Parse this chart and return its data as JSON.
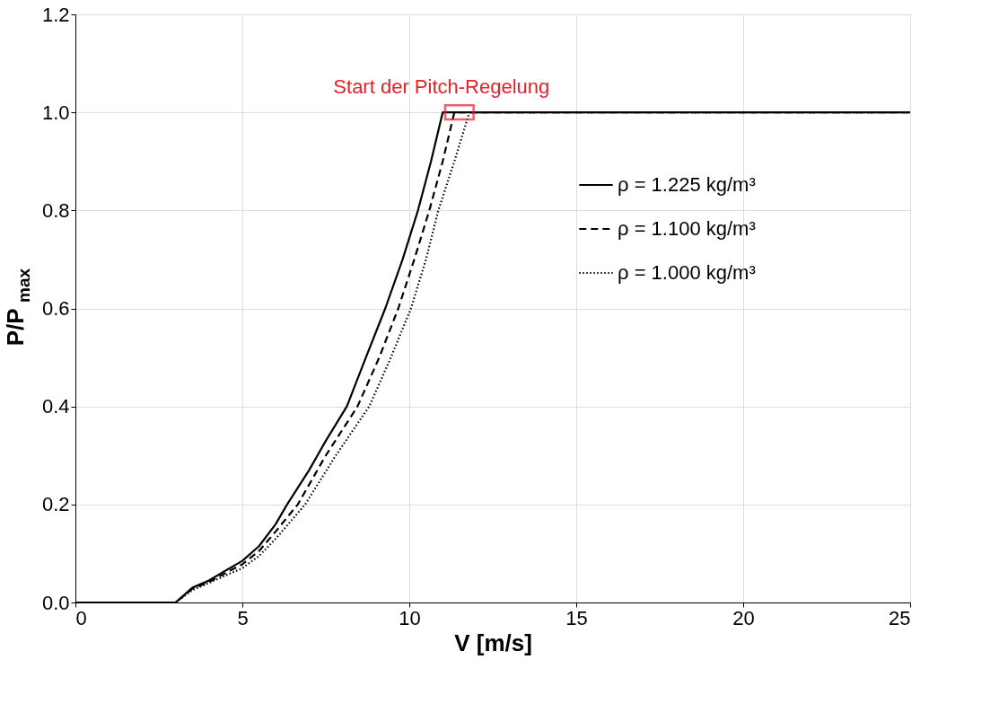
{
  "chart_data": {
    "type": "line",
    "xlabel": "V [m/s]",
    "ylabel": "P/P$_{max}$",
    "xlim": [
      0,
      25
    ],
    "xticks": [
      0,
      5,
      10,
      15,
      20,
      25
    ],
    "ylim": [
      0,
      1.2
    ],
    "yticks": [
      {
        "value": 0,
        "label": "0.0"
      },
      {
        "value": 0.2,
        "label": "0.2"
      },
      {
        "value": 0.4,
        "label": "0.4"
      },
      {
        "value": 0.6,
        "label": "0.6"
      },
      {
        "value": 0.8,
        "label": "0.8"
      },
      {
        "value": 1.0,
        "label": "1.0"
      },
      {
        "value": 1.2,
        "label": "1.2"
      }
    ],
    "grid": true,
    "legend": "right",
    "marker": "none",
    "annotations": [
      {
        "text": "Start der Pitch-Regelung",
        "x": 11.5,
        "y": 1.0
      }
    ],
    "series": [
      {
        "name": "ρ = 1.225 kg/m³",
        "color": "#000000",
        "line_style": "solid",
        "x": [
          0,
          3,
          3.5,
          4,
          5,
          5.5,
          6,
          6.34,
          7,
          7.5,
          8.13,
          8.7,
          9.28,
          9.8,
          10.26,
          10.65,
          11,
          25
        ],
        "values": [
          0,
          0,
          0.03,
          0.045,
          0.085,
          0.115,
          0.16,
          0.2,
          0.27,
          0.33,
          0.4,
          0.5,
          0.6,
          0.7,
          0.8,
          0.9,
          1.0,
          1.0
        ]
      },
      {
        "name": "ρ = 1.100 kg/m³",
        "color": "#000000",
        "line_style": "dashed",
        "x": [
          0,
          3,
          3.5,
          4,
          5,
          5.5,
          6,
          6.66,
          7.5,
          8.45,
          9.1,
          9.67,
          10.15,
          10.6,
          11,
          11.35,
          25
        ],
        "values": [
          0,
          0,
          0.028,
          0.042,
          0.078,
          0.105,
          0.145,
          0.2,
          0.3,
          0.4,
          0.5,
          0.6,
          0.7,
          0.8,
          0.9,
          1.0,
          1.0
        ]
      },
      {
        "name": "ρ = 1.000 kg/m³",
        "color": "#000000",
        "line_style": "dotted",
        "x": [
          0,
          3,
          3.5,
          4,
          5,
          5.5,
          6,
          6.88,
          7.8,
          8.8,
          9.45,
          10.05,
          10.5,
          10.87,
          11.35,
          11.8,
          25
        ],
        "values": [
          0,
          0,
          0.025,
          0.04,
          0.07,
          0.095,
          0.13,
          0.2,
          0.3,
          0.4,
          0.5,
          0.6,
          0.7,
          0.8,
          0.9,
          1.0,
          1.0
        ]
      }
    ]
  }
}
